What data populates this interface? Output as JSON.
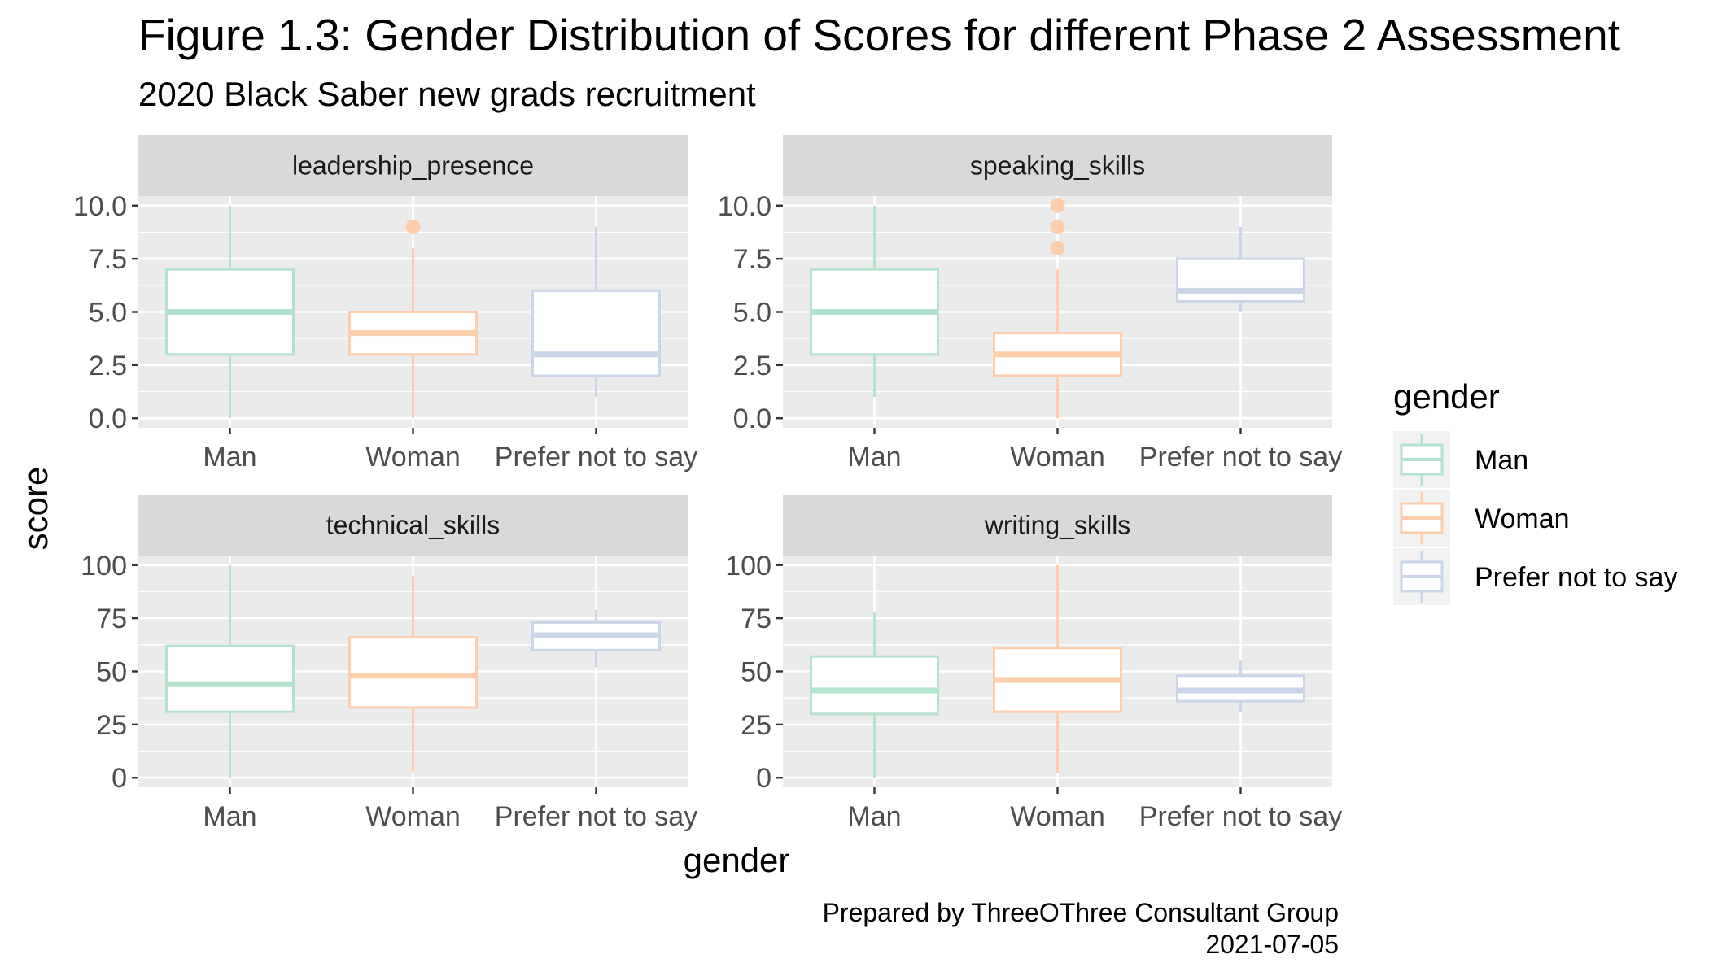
{
  "chart_data": {
    "type": "boxplot",
    "title": "Figure 1.3: Gender Distribution of Scores for different Phase 2 Assessment",
    "subtitle": "2020 Black Saber new grads recruitment",
    "xlabel": "gender",
    "ylabel": "score",
    "caption_lines": [
      "Prepared by ThreeOThree Consultant Group",
      "2021-07-05"
    ],
    "categories": [
      "Man",
      "Woman",
      "Prefer not to say"
    ],
    "colors": {
      "Man": "#b3e2cd",
      "Woman": "#fdcdac",
      "Prefer not to say": "#cbd5e8"
    },
    "legend": {
      "title": "gender",
      "position": "right",
      "entries": [
        "Man",
        "Woman",
        "Prefer not to say"
      ]
    },
    "grid": true,
    "panels": [
      {
        "name": "leadership_presence",
        "ylim": [
          0,
          10
        ],
        "yticks": [
          0,
          2.5,
          5,
          7.5,
          10
        ],
        "ytick_labels": [
          "0.0",
          "2.5",
          "5.0",
          "7.5",
          "10.0"
        ],
        "boxes": [
          {
            "group": "Man",
            "min": 0,
            "q1": 3,
            "median": 5,
            "q3": 7,
            "max": 10,
            "outliers": []
          },
          {
            "group": "Woman",
            "min": 0,
            "q1": 3,
            "median": 4,
            "q3": 5,
            "max": 8,
            "outliers": [
              9
            ]
          },
          {
            "group": "Prefer not to say",
            "min": 1,
            "q1": 2,
            "median": 3,
            "q3": 6,
            "max": 9,
            "outliers": []
          }
        ]
      },
      {
        "name": "speaking_skills",
        "ylim": [
          0,
          10
        ],
        "yticks": [
          0,
          2.5,
          5,
          7.5,
          10
        ],
        "ytick_labels": [
          "0.0",
          "2.5",
          "5.0",
          "7.5",
          "10.0"
        ],
        "boxes": [
          {
            "group": "Man",
            "min": 1,
            "q1": 3,
            "median": 5,
            "q3": 7,
            "max": 10,
            "outliers": []
          },
          {
            "group": "Woman",
            "min": 0,
            "q1": 2,
            "median": 3,
            "q3": 4,
            "max": 7,
            "outliers": [
              8,
              9,
              10
            ]
          },
          {
            "group": "Prefer not to say",
            "min": 5,
            "q1": 5.5,
            "median": 6,
            "q3": 7.5,
            "max": 9,
            "outliers": []
          }
        ]
      },
      {
        "name": "technical_skills",
        "ylim": [
          0,
          100
        ],
        "yticks": [
          0,
          25,
          50,
          75,
          100
        ],
        "ytick_labels": [
          "0",
          "25",
          "50",
          "75",
          "100"
        ],
        "boxes": [
          {
            "group": "Man",
            "min": 0,
            "q1": 31,
            "median": 44,
            "q3": 62,
            "max": 100,
            "outliers": []
          },
          {
            "group": "Woman",
            "min": 3,
            "q1": 33,
            "median": 48,
            "q3": 66,
            "max": 95,
            "outliers": []
          },
          {
            "group": "Prefer not to say",
            "min": 52,
            "q1": 60,
            "median": 67,
            "q3": 73,
            "max": 79,
            "outliers": []
          }
        ]
      },
      {
        "name": "writing_skills",
        "ylim": [
          0,
          100
        ],
        "yticks": [
          0,
          25,
          50,
          75,
          100
        ],
        "ytick_labels": [
          "0",
          "25",
          "50",
          "75",
          "100"
        ],
        "boxes": [
          {
            "group": "Man",
            "min": 0,
            "q1": 30,
            "median": 41,
            "q3": 57,
            "max": 78,
            "outliers": []
          },
          {
            "group": "Woman",
            "min": 2,
            "q1": 31,
            "median": 46,
            "q3": 61,
            "max": 100,
            "outliers": []
          },
          {
            "group": "Prefer not to say",
            "min": 31,
            "q1": 36,
            "median": 41,
            "q3": 48,
            "max": 55,
            "outliers": []
          }
        ]
      }
    ]
  }
}
